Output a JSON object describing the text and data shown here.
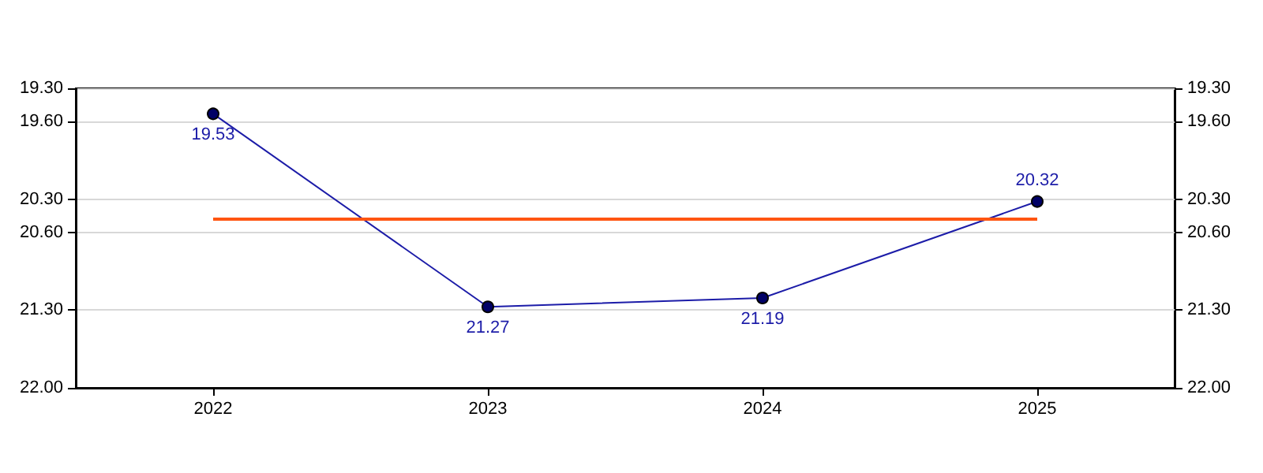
{
  "chart_data": {
    "type": "line",
    "categories": [
      "2022",
      "2023",
      "2024",
      "2025"
    ],
    "series": [
      {
        "color": "#1c1ca8",
        "values": [
          19.53,
          21.27,
          21.19,
          20.32
        ]
      }
    ],
    "data_labels": true,
    "ylim": [
      22,
      19.3
    ],
    "yticks": [
      {
        "value": 19.3,
        "label": "19.30"
      },
      {
        "value": 19.6,
        "label": "19.60"
      },
      {
        "value": 20.3,
        "label": "20.30"
      },
      {
        "value": 20.6,
        "label": "20.60"
      },
      {
        "value": 21.3,
        "label": "21.30"
      },
      {
        "value": 22,
        "label": "22.00"
      }
    ],
    "y2lim": [
      22,
      19.3
    ],
    "y2ticks": [
      {
        "value": 19.3,
        "label": "19.30"
      },
      {
        "value": 19.6,
        "label": "19.60"
      },
      {
        "value": 20.3,
        "label": "20.30"
      },
      {
        "value": 20.6,
        "label": "20.60"
      },
      {
        "value": 21.3,
        "label": "21.30"
      },
      {
        "value": 22,
        "label": "22.00"
      }
    ],
    "ref_lines": [
      {
        "axis": "y",
        "value": 20.48,
        "color": "#ff5511"
      }
    ],
    "grid": "y",
    "marker": "circle",
    "line_style": "solid"
  }
}
